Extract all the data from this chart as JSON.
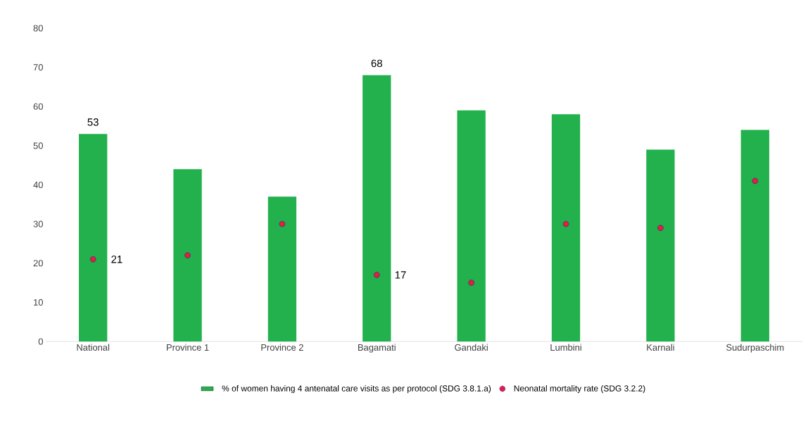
{
  "chart_data": {
    "type": "bar",
    "categories": [
      "National",
      "Province 1",
      "Province 2",
      "Bagamati",
      "Gandaki",
      "Lumbini",
      "Karnali",
      "Sudurpaschim"
    ],
    "series": [
      {
        "name": "% of women having 4 antenatal care visits as per protocol (SDG 3.8.1.a)",
        "color": "#22b14c",
        "values": [
          53,
          44,
          37,
          68,
          59,
          58,
          49,
          54
        ],
        "value_labels": [
          "53",
          null,
          null,
          "68",
          null,
          null,
          null,
          null
        ]
      },
      {
        "name": "Neonatal mortality rate  (SDG 3.2.2)",
        "type": "scatter",
        "marker": "circle",
        "color": "#ea1c3c",
        "values": [
          21,
          22,
          30,
          17,
          15,
          30,
          29,
          41
        ],
        "value_labels": [
          "21",
          null,
          null,
          "17",
          null,
          null,
          null,
          null
        ]
      }
    ],
    "ylim": [
      0,
      80
    ],
    "yticks": [
      0,
      10,
      20,
      30,
      40,
      50,
      60,
      70,
      80
    ],
    "legend": "bottom"
  }
}
